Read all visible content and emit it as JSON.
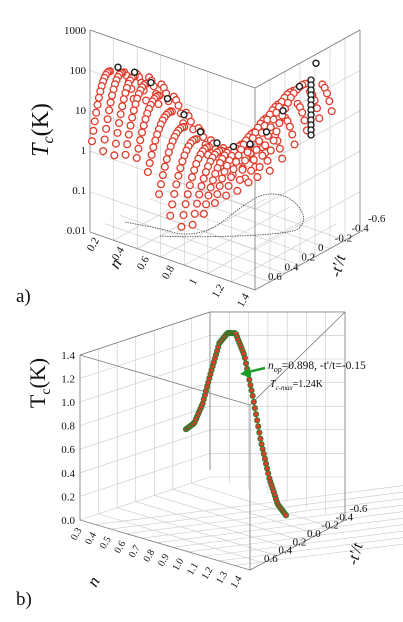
{
  "panel_labels": [
    "a)",
    "b)"
  ],
  "colors": {
    "series_red": "#e03c2c",
    "series_black": "#1a1a1a",
    "curve_green": "#2a7a2a",
    "arrow": "#1f9b2a"
  },
  "chart_data": [
    {
      "type": "scatter",
      "title": "",
      "zlabel_main": "T",
      "zlabel_sub": "c",
      "zlabel_unit": "(K)",
      "xlabel": "n",
      "ylabel": "-t'/t",
      "z_scale": "log",
      "zlim": [
        0.01,
        1000
      ],
      "z_ticks": [
        "0.01",
        "0.1",
        "1",
        "10",
        "100",
        "1000"
      ],
      "x_ticks": [
        "0.2",
        "0.4",
        "0.6",
        "0.8",
        "1",
        "1.2",
        "1.4"
      ],
      "y_ticks": [
        "-0.6",
        "-0.4",
        "-0.2",
        "0",
        "0.2",
        "0.4",
        "0.6"
      ],
      "n_values": [
        0.2,
        0.3,
        0.4,
        0.5,
        0.6,
        0.7,
        0.8,
        0.9,
        1.0,
        1.1,
        1.2,
        1.3,
        1.4
      ],
      "series": [
        {
          "color": "red",
          "description_points": "family of Tc(n) curves, each at fixed -t'/t from 0.6 to -0.6",
          "peak_tc_by_curve": [
            120,
            110,
            90,
            60,
            30,
            12,
            5,
            2.5,
            1.6,
            1.3,
            1.4,
            2,
            4,
            9,
            20,
            40,
            60
          ]
        },
        {
          "color": "black",
          "description_points": "optimal Tc trace",
          "tc": [
            120,
            90,
            50,
            20,
            8,
            3,
            1.6,
            1.3,
            1.5,
            3,
            10,
            40,
            150
          ]
        }
      ],
      "grid": true
    },
    {
      "type": "line",
      "title": "",
      "zlabel_main": "T",
      "zlabel_sub": "c",
      "zlabel_unit": "(K)",
      "xlabel": "n",
      "ylabel": "-t'/t",
      "zlim": [
        0,
        1.4
      ],
      "z_ticks": [
        "0.0",
        "0.2",
        "0.4",
        "0.6",
        "0.8",
        "1.0",
        "1.2",
        "1.4"
      ],
      "x_ticks": [
        "0.3",
        "0.4",
        "0.5",
        "0.6",
        "0.7",
        "0.8",
        "0.9",
        "1.0",
        "1.1",
        "1.2",
        "1.3",
        "1.4"
      ],
      "y_ticks": [
        "-0.6",
        "-0.4",
        "-0.2",
        "0.0",
        "0.2",
        "0.4",
        "0.6"
      ],
      "n_values": [
        0.6,
        0.65,
        0.7,
        0.75,
        0.8,
        0.85,
        0.898,
        0.95,
        1.0,
        1.05,
        1.1,
        1.15,
        1.2
      ],
      "tc_values": [
        0.38,
        0.45,
        0.62,
        0.88,
        1.12,
        1.22,
        1.24,
        1.1,
        0.82,
        0.5,
        0.25,
        0.08,
        0.02
      ],
      "annotation": {
        "line1_var": "n",
        "line1_sub": "op",
        "line1_rest": "=0.898, -t'/t=-0.15",
        "line2_var": "T",
        "line2_sub": "c-max",
        "line2_rest": "=1.24K"
      },
      "grid": true
    }
  ]
}
